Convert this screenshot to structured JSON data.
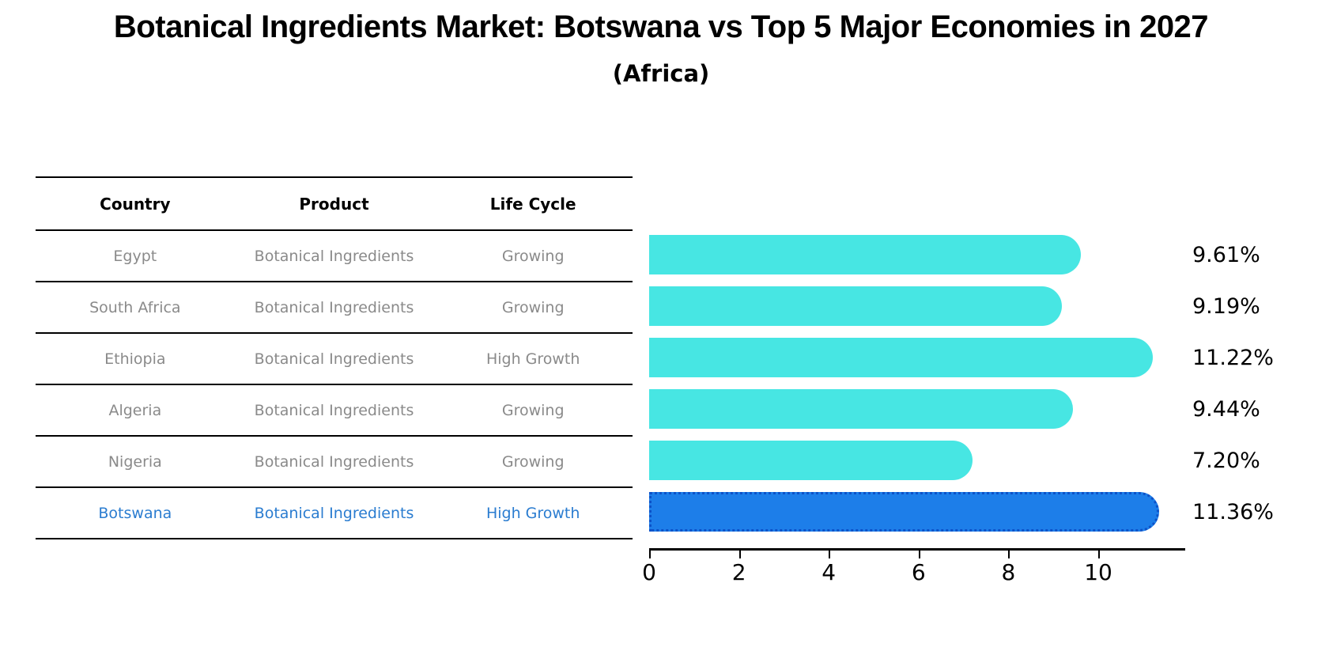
{
  "chart_data": {
    "type": "bar",
    "orientation": "horizontal",
    "title": "Botanical Ingredients Market: Botswana vs Top 5 Major Economies in 2027",
    "subtitle": "(Africa)",
    "categories": [
      "Egypt",
      "South Africa",
      "Ethiopia",
      "Algeria",
      "Nigeria",
      "Botswana"
    ],
    "values": [
      9.61,
      9.19,
      11.22,
      9.44,
      7.2,
      11.36
    ],
    "value_labels": [
      "9.61%",
      "9.19%",
      "11.22%",
      "9.44%",
      "7.20%",
      "11.36%"
    ],
    "xlabel": "",
    "ylabel": "",
    "xlim": [
      0,
      11.9
    ],
    "xticks": [
      0,
      2,
      4,
      6,
      8,
      10
    ],
    "grid": false,
    "legend": false,
    "highlight_index": 5,
    "bar_color": "#47E6E3",
    "highlight_bar_color": "#1D7EE9",
    "highlight_border_color": "#0D52C8"
  },
  "table": {
    "headers": [
      "Country",
      "Product",
      "Life Cycle"
    ],
    "rows": [
      {
        "country": "Egypt",
        "product": "Botanical Ingredients",
        "life_cycle": "Growing"
      },
      {
        "country": "South Africa",
        "product": "Botanical Ingredients",
        "life_cycle": "Growing"
      },
      {
        "country": "Ethiopia",
        "product": "Botanical Ingredients",
        "life_cycle": "High Growth"
      },
      {
        "country": "Algeria",
        "product": "Botanical Ingredients",
        "life_cycle": "Growing"
      },
      {
        "country": "Nigeria",
        "product": "Botanical Ingredients",
        "life_cycle": "Growing"
      },
      {
        "country": "Botswana",
        "product": "Botanical Ingredients",
        "life_cycle": "High Growth"
      }
    ],
    "highlight_row": 5
  },
  "colors": {
    "background": "#FFFFFF",
    "table_line": "#000000",
    "header_text": "#000000",
    "cell_text": "#8A8A8A",
    "highlight_text": "#2A7CD0",
    "axis": "#000000"
  }
}
